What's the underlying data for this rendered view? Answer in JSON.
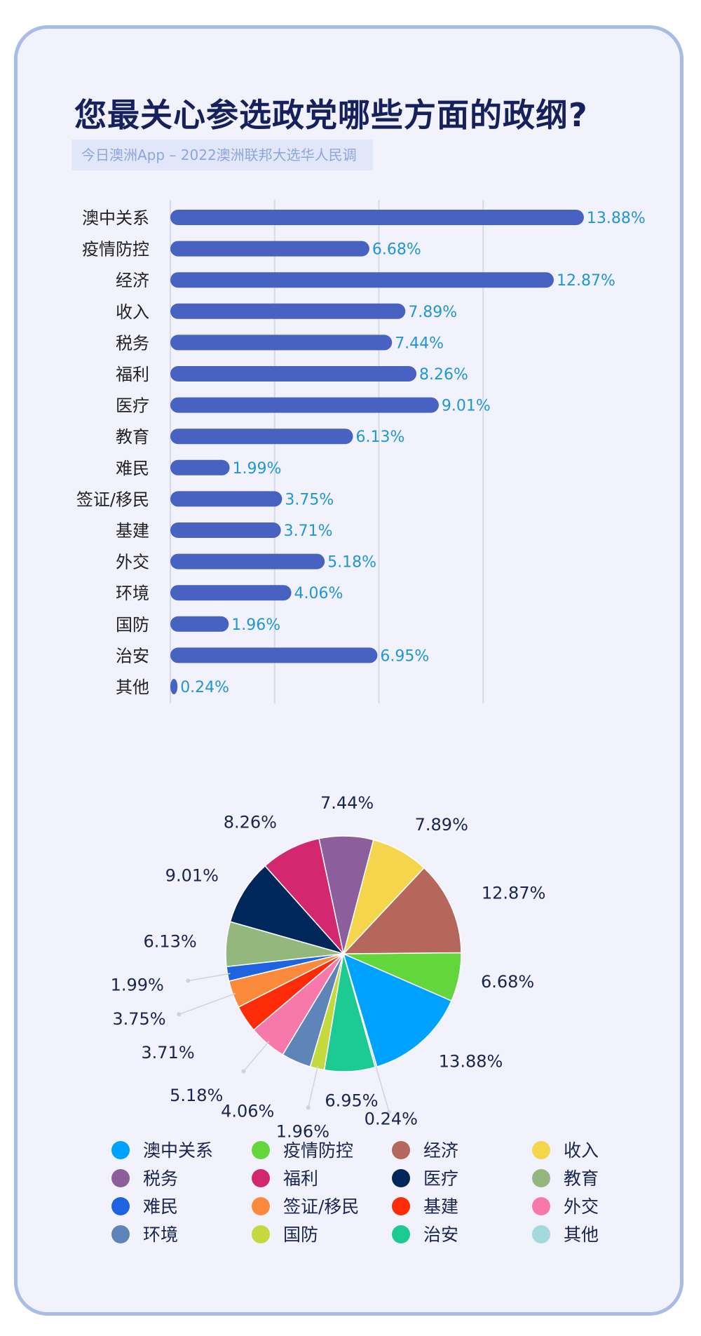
{
  "header": {
    "title": "您最关心参选政党哪些方面的政纲?",
    "subtitle": "今日澳洲App – 2022澳洲联邦大选华人民调"
  },
  "colors": {
    "bar": "#4862c1",
    "value_text": "#2196d6",
    "grid": "#d6d9e6",
    "card_border": "#a9bce6",
    "card_bg": "#f1f2fb"
  },
  "chart_data": [
    {
      "type": "bar",
      "orientation": "horizontal",
      "categories": [
        "澳中关系",
        "疫情防控",
        "经济",
        "收入",
        "税务",
        "福利",
        "医疗",
        "教育",
        "难民",
        "签证/移民",
        "基建",
        "外交",
        "环境",
        "国防",
        "治安",
        "其他"
      ],
      "values": [
        13.88,
        6.68,
        12.87,
        7.89,
        7.44,
        8.26,
        9.01,
        6.13,
        1.99,
        3.75,
        3.71,
        5.18,
        4.06,
        1.96,
        6.95,
        0.24
      ],
      "value_labels": [
        "13.88%",
        "6.68%",
        "12.87%",
        "7.89%",
        "7.44%",
        "8.26%",
        "9.01%",
        "6.13%",
        "1.99%",
        "3.75%",
        "3.71%",
        "5.18%",
        "4.06%",
        "1.96%",
        "6.95%",
        "0.24%"
      ],
      "xlim": [
        0,
        14
      ],
      "grid": true
    },
    {
      "type": "pie",
      "categories": [
        "澳中关系",
        "疫情防控",
        "经济",
        "收入",
        "税务",
        "福利",
        "医疗",
        "教育",
        "难民",
        "签证/移民",
        "基建",
        "外交",
        "环境",
        "国防",
        "治安",
        "其他"
      ],
      "values": [
        13.88,
        6.68,
        12.87,
        7.89,
        7.44,
        8.26,
        9.01,
        6.13,
        1.99,
        3.75,
        3.71,
        5.18,
        4.06,
        1.96,
        6.95,
        0.24
      ],
      "value_labels": [
        "13.88%",
        "6.68%",
        "12.87%",
        "7.89%",
        "7.44%",
        "8.26%",
        "9.01%",
        "6.13%",
        "1.99%",
        "3.75%",
        "3.71%",
        "5.18%",
        "4.06%",
        "1.96%",
        "6.95%",
        "0.24%"
      ],
      "colors": [
        "#00a2ff",
        "#62d63a",
        "#b5675c",
        "#f4d54b",
        "#8c5f9c",
        "#d3276f",
        "#00275a",
        "#94b77d",
        "#1e64e0",
        "#fb8a3c",
        "#fe2b08",
        "#f779ab",
        "#5f84b8",
        "#c4d93e",
        "#1ccb93",
        "#a3d9dc"
      ],
      "legend": "bottom"
    }
  ]
}
